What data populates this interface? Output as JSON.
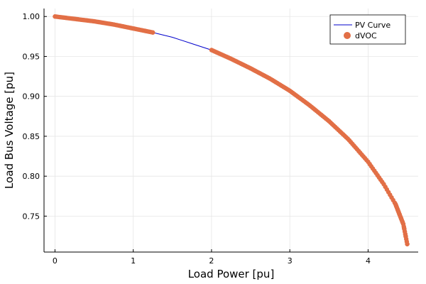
{
  "chart_data": {
    "type": "scatter",
    "title": "",
    "xlabel": "Load Power [pu]",
    "ylabel": "Load Bus Voltage [pu]",
    "xlim": [
      -0.14,
      4.64
    ],
    "ylim": [
      0.705,
      1.01
    ],
    "xticks": [
      0,
      1,
      2,
      3,
      4
    ],
    "yticks": [
      0.75,
      0.8,
      0.85,
      0.9,
      0.95,
      1.0
    ],
    "xtick_labels": [
      "0",
      "1",
      "2",
      "3",
      "4"
    ],
    "ytick_labels": [
      "0.75",
      "0.80",
      "0.85",
      "0.90",
      "0.95",
      "1.00"
    ],
    "grid": true,
    "legend_position": "top-right",
    "series": [
      {
        "name": "PV Curve",
        "kind": "line",
        "color": "#0000cc",
        "x": [
          0,
          0.25,
          0.5,
          0.75,
          1.0,
          1.25,
          1.5,
          1.75,
          2.0,
          2.25,
          2.5,
          2.75,
          3.0,
          3.25,
          3.5,
          3.75,
          4.0,
          4.2,
          4.35,
          4.45,
          4.5
        ],
        "y": [
          1.0,
          0.997,
          0.994,
          0.99,
          0.985,
          0.98,
          0.974,
          0.966,
          0.958,
          0.947,
          0.935,
          0.922,
          0.907,
          0.889,
          0.869,
          0.846,
          0.818,
          0.79,
          0.765,
          0.74,
          0.715
        ]
      },
      {
        "name": "dVOC",
        "kind": "scatter",
        "color": "#e26f46",
        "segments": [
          {
            "x": [
              0,
              0.25,
              0.5,
              0.75,
              1.0,
              1.25
            ],
            "y": [
              1.0,
              0.997,
              0.994,
              0.99,
              0.985,
              0.98
            ]
          },
          {
            "x": [
              2.0,
              2.25,
              2.5,
              2.75,
              3.0,
              3.25,
              3.5,
              3.75,
              4.0,
              4.2,
              4.35,
              4.45,
              4.5
            ],
            "y": [
              0.958,
              0.947,
              0.935,
              0.922,
              0.907,
              0.889,
              0.869,
              0.846,
              0.818,
              0.79,
              0.765,
              0.74,
              0.715
            ]
          }
        ]
      }
    ]
  }
}
